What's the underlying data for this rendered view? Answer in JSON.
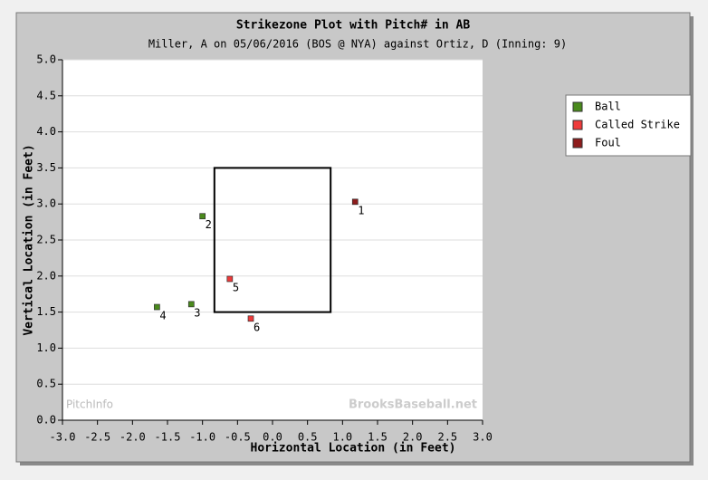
{
  "chart_data": {
    "type": "scatter",
    "title": "Strikezone Plot with Pitch# in AB",
    "subtitle": "Miller, A on 05/06/2016 (BOS @ NYA) against Ortiz, D (Inning: 9)",
    "x_label": "Horizontal Location (in Feet)",
    "y_label": "Vertical Location (in Feet)",
    "xlim": [
      -3,
      3
    ],
    "ylim": [
      0,
      5
    ],
    "xticks": [
      {
        "value": -3,
        "label": "-3.0"
      },
      -2.5,
      {
        "value": -2,
        "label": "-2.0"
      },
      -1.5,
      {
        "value": -1,
        "label": "-1.0"
      },
      -0.5,
      {
        "value": 0,
        "label": "0.0"
      },
      0.5,
      {
        "value": 1,
        "label": "1.0"
      },
      1.5,
      {
        "value": 2,
        "label": "2.0"
      },
      2.5,
      {
        "value": 3,
        "label": "3.0"
      }
    ],
    "yticks": [
      {
        "value": 0,
        "label": "0.0"
      },
      0.5,
      {
        "value": 1,
        "label": "1.0"
      },
      1.5,
      {
        "value": 2,
        "label": "2.0"
      },
      2.5,
      {
        "value": 3,
        "label": "3.0"
      },
      3.5,
      {
        "value": 4,
        "label": "4.0"
      },
      4.5,
      {
        "value": 5,
        "label": "5.0"
      }
    ],
    "grid": true,
    "legend_position": "right",
    "strike_zone": {
      "left": -0.83,
      "right": 0.83,
      "bottom": 1.5,
      "top": 3.5
    },
    "series": [
      {
        "name": "Ball",
        "color": "#4a8a1c",
        "x": [
          -1.0,
          -1.16,
          -1.65
        ],
        "values": [
          2.83,
          1.61,
          1.57
        ],
        "labels": [
          "2",
          "3",
          "4"
        ]
      },
      {
        "name": "Called Strike",
        "color": "#ee3a3a",
        "x": [
          -0.61,
          -0.31
        ],
        "values": [
          1.96,
          1.41
        ],
        "labels": [
          "5",
          "6"
        ]
      },
      {
        "name": "Foul",
        "color": "#8e1c1c",
        "x": [
          1.18
        ],
        "values": [
          3.03
        ],
        "labels": [
          "1"
        ]
      }
    ],
    "watermarks": [
      "PitchInfo",
      "BrooksBaseball.net"
    ]
  }
}
